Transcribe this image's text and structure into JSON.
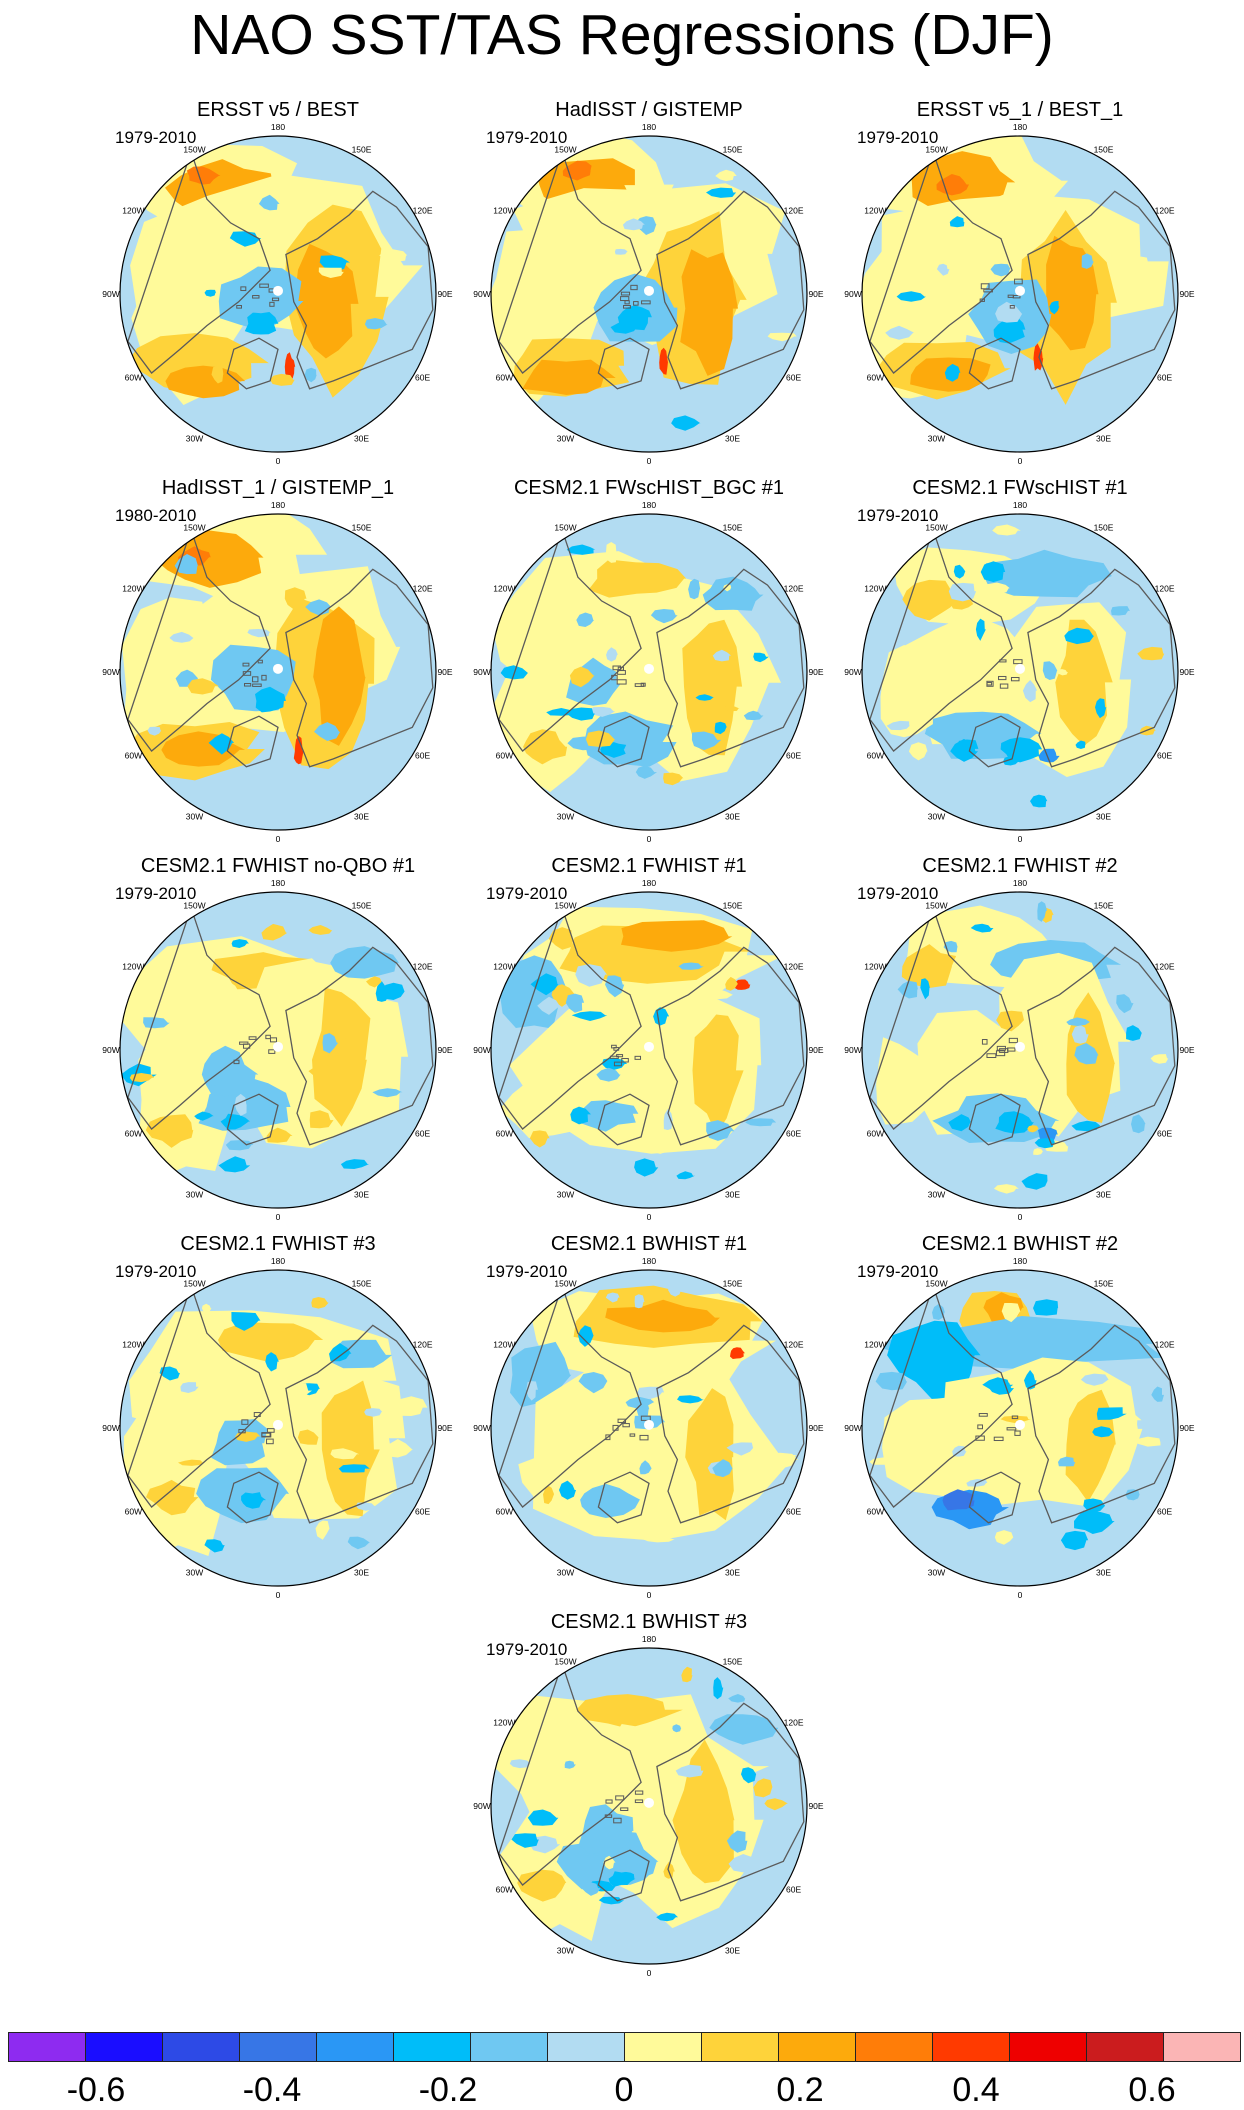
{
  "chart_data": {
    "type": "heatmap",
    "title": "NAO SST/TAS Regressions (DJF)",
    "projection": "north polar stereographic",
    "longitude_labels": [
      "180",
      "150E",
      "120E",
      "90E",
      "60E",
      "30E",
      "0",
      "30W",
      "60W",
      "90W",
      "120W",
      "150W"
    ],
    "panels": [
      {
        "title": "ERSST v5 / BEST",
        "period": "1979-2010",
        "style": "obs"
      },
      {
        "title": "HadISST / GISTEMP",
        "period": "1979-2010",
        "style": "obs"
      },
      {
        "title": "ERSST v5_1 / BEST_1",
        "period": "1979-2010",
        "style": "obs"
      },
      {
        "title": "HadISST_1 / GISTEMP_1",
        "period": "1980-2010",
        "style": "obs"
      },
      {
        "title": "CESM2.1 FWscHIST_BGC #1",
        "period": "",
        "style": "model"
      },
      {
        "title": "CESM2.1 FWscHIST #1",
        "period": "1979-2010",
        "style": "model_cool"
      },
      {
        "title": "CESM2.1 FWHIST no-QBO #1",
        "period": "1979-2010",
        "style": "model"
      },
      {
        "title": "CESM2.1 FWHIST #1",
        "period": "1979-2010",
        "style": "model_pacwarm"
      },
      {
        "title": "CESM2.1 FWHIST #2",
        "period": "1979-2010",
        "style": "model_cool"
      },
      {
        "title": "CESM2.1 FWHIST #3",
        "period": "1979-2010",
        "style": "model"
      },
      {
        "title": "CESM2.1 BWHIST #1",
        "period": "1979-2010",
        "style": "model_pacwarm"
      },
      {
        "title": "CESM2.1 BWHIST #2",
        "period": "1979-2010",
        "style": "model_strong"
      },
      {
        "title": "CESM2.1 BWHIST #3",
        "period": "1979-2010",
        "style": "model"
      }
    ],
    "colorbar": {
      "colors": [
        "#8e2bf0",
        "#1a0dff",
        "#2d4ae6",
        "#3776e6",
        "#2a97f5",
        "#00bdf9",
        "#6fc8f2",
        "#b2dcf2",
        "#fffa9a",
        "#fed33a",
        "#fdaa0c",
        "#ff7d08",
        "#ff3a00",
        "#ee0000",
        "#cb1c1e",
        "#fbb5b5"
      ],
      "tick_values": [
        -0.6,
        -0.4,
        -0.2,
        0,
        0.2,
        0.4,
        0.6
      ],
      "tick_labels": [
        "-0.6",
        "-0.4",
        "-0.2",
        "0",
        "0.2",
        "0.4",
        "0.6"
      ],
      "range": [
        -0.7,
        0.7
      ],
      "interval": 0.1
    }
  }
}
